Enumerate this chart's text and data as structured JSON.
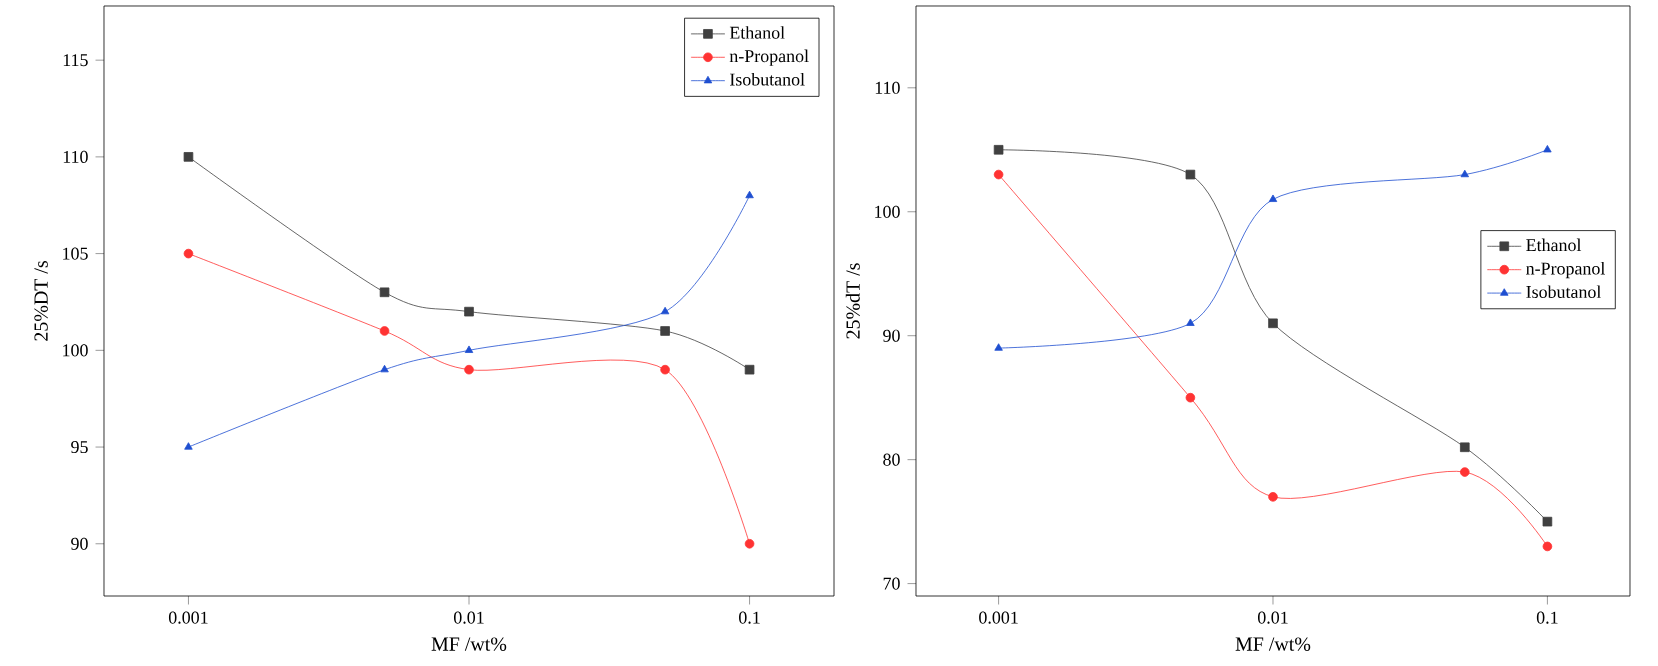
{
  "chart_data": [
    {
      "type": "line",
      "xlabel": "MF /wt%",
      "ylabel": "25%DT /s",
      "log": "x",
      "x": [
        0.001,
        0.005,
        0.01,
        0.05,
        0.1
      ],
      "xlim": [
        0.0005,
        0.2
      ],
      "ylim": [
        87.3,
        117.8
      ],
      "xticks": [
        0.001,
        0.01,
        0.1
      ],
      "yticks": [
        90,
        95,
        100,
        105,
        110,
        115
      ],
      "legend": "top right",
      "line_style": "solid",
      "series": [
        {
          "name": "Ethanol",
          "color": "#404040",
          "marker": "square",
          "values": [
            110,
            103,
            102,
            101,
            99
          ]
        },
        {
          "name": "n-Propanol",
          "color": "#ff3333",
          "marker": "circle",
          "values": [
            105,
            101,
            99,
            99,
            90
          ]
        },
        {
          "name": "Isobutanol",
          "color": "#1f4fd0",
          "marker": "triangle",
          "values": [
            95,
            99,
            100,
            102,
            108
          ]
        }
      ]
    },
    {
      "type": "line",
      "xlabel": "MF /wt%",
      "ylabel": "25%dT /s",
      "log": "x",
      "x": [
        0.001,
        0.005,
        0.01,
        0.05,
        0.1
      ],
      "xlim": [
        0.0005,
        0.2
      ],
      "ylim": [
        69,
        116.6
      ],
      "xticks": [
        0.001,
        0.01,
        0.1
      ],
      "yticks": [
        70,
        80,
        90,
        100,
        110
      ],
      "legend": "right",
      "line_style": "solid",
      "series": [
        {
          "name": "Ethanol",
          "color": "#404040",
          "marker": "square",
          "values": [
            105,
            103,
            91,
            81,
            75
          ]
        },
        {
          "name": "n-Propanol",
          "color": "#ff3333",
          "marker": "circle",
          "values": [
            103,
            85,
            77,
            79,
            73
          ]
        },
        {
          "name": "Isobutanol",
          "color": "#1f4fd0",
          "marker": "triangle",
          "values": [
            89,
            91,
            101,
            103,
            105
          ]
        }
      ]
    }
  ]
}
